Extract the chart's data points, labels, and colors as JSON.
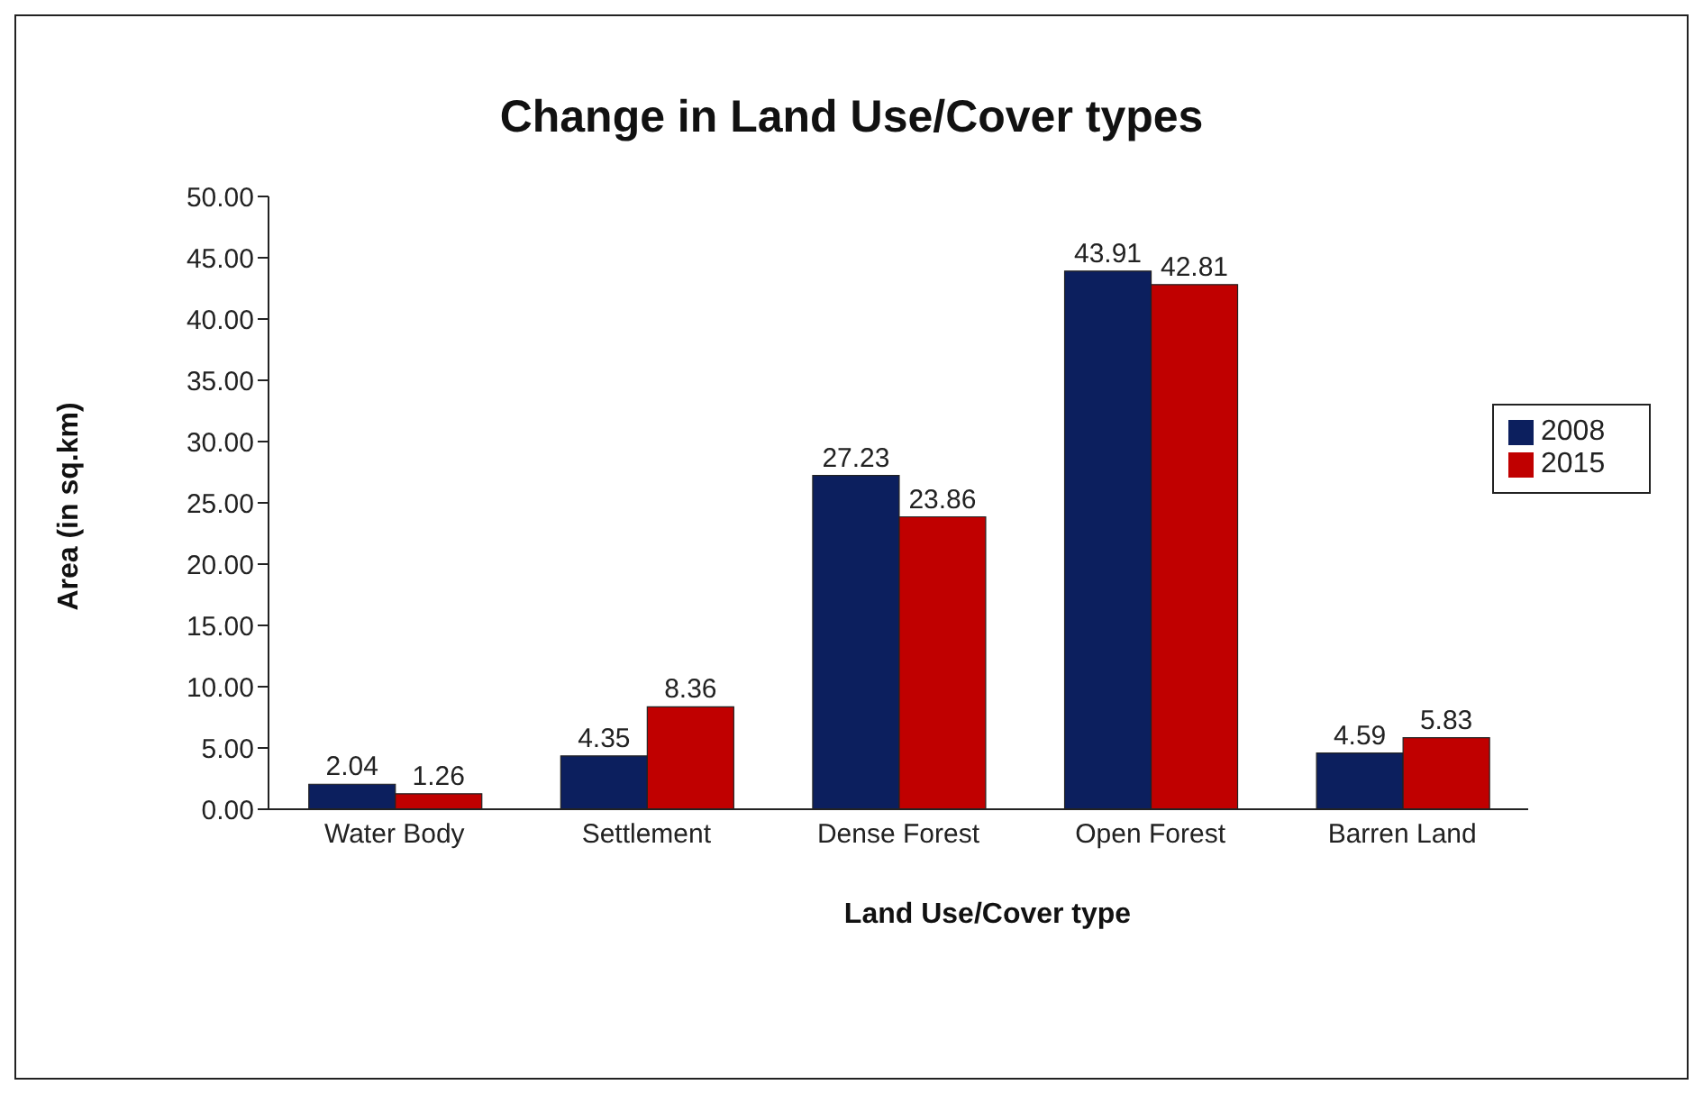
{
  "chart_data": {
    "type": "bar",
    "title": "Change in Land Use/Cover types",
    "xlabel": "Land Use/Cover type",
    "ylabel": "Area (in sq.km)",
    "categories": [
      "Water Body",
      "Settlement",
      "Dense Forest",
      "Open Forest",
      "Barren Land"
    ],
    "series": [
      {
        "name": "2008",
        "color": "#0c1f5e",
        "values": [
          2.04,
          4.35,
          27.23,
          43.91,
          4.59
        ]
      },
      {
        "name": "2015",
        "color": "#c00000",
        "values": [
          1.26,
          8.36,
          23.86,
          42.81,
          5.83
        ]
      }
    ],
    "ylim": [
      0,
      50
    ],
    "yticks": [
      {
        "value": 0,
        "label": "0.00"
      },
      {
        "value": 5,
        "label": "5.00"
      },
      {
        "value": 10,
        "label": "10.00"
      },
      {
        "value": 15,
        "label": "15.00"
      },
      {
        "value": 20,
        "label": "20.00"
      },
      {
        "value": 25,
        "label": "25.00"
      },
      {
        "value": 30,
        "label": "30.00"
      },
      {
        "value": 35,
        "label": "35.00"
      },
      {
        "value": 40,
        "label": "40.00"
      },
      {
        "value": 45,
        "label": "45.00"
      },
      {
        "value": 50,
        "label": "50.00"
      }
    ],
    "data_labels": true,
    "grid": false,
    "legend": "right"
  }
}
